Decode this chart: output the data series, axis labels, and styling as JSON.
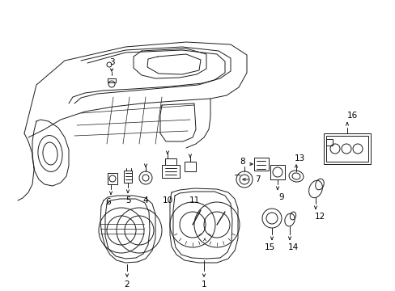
{
  "bg_color": "#ffffff",
  "fig_width": 4.89,
  "fig_height": 3.6,
  "dpi": 100,
  "line_color": "#1a1a1a",
  "text_color": "#000000",
  "lw": 0.7
}
